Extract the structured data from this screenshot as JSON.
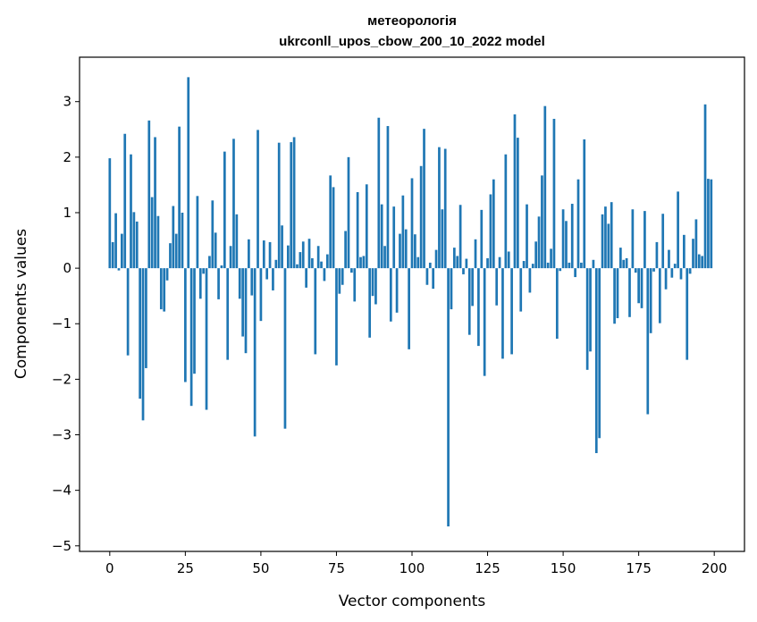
{
  "chart_data": {
    "type": "bar",
    "title": "метеорологія",
    "subtitle": "ukrconll_upos_cbow_200_10_2022 model",
    "xlabel": "Vector components",
    "ylabel": "Components values",
    "xlim": [
      -10,
      210
    ],
    "ylim": [
      -5.1,
      3.8
    ],
    "xticks": [
      0,
      25,
      50,
      75,
      100,
      125,
      150,
      175,
      200
    ],
    "xtick_labels": [
      "0",
      "25",
      "50",
      "75",
      "100",
      "125",
      "150",
      "175",
      "200"
    ],
    "yticks": [
      -5,
      -4,
      -3,
      -2,
      -1,
      0,
      1,
      2,
      3
    ],
    "ytick_labels": [
      "−5",
      "−4",
      "−3",
      "−2",
      "−1",
      "0",
      "1",
      "2",
      "3"
    ],
    "grid": false,
    "bar_color": "#1f77b4",
    "values": [
      1.98,
      0.47,
      0.99,
      -0.04,
      0.62,
      2.42,
      -1.57,
      2.05,
      1.01,
      0.84,
      -2.35,
      -2.74,
      -1.8,
      2.66,
      1.28,
      2.36,
      0.94,
      -0.74,
      -0.78,
      -0.22,
      0.45,
      1.12,
      0.62,
      2.55,
      1.0,
      -2.05,
      3.44,
      -2.48,
      -1.9,
      1.3,
      -0.55,
      -0.1,
      -2.55,
      0.22,
      1.22,
      0.64,
      -0.56,
      0.05,
      2.1,
      -1.65,
      0.4,
      2.33,
      0.97,
      -0.55,
      -1.23,
      -1.53,
      0.52,
      -0.49,
      -3.03,
      2.49,
      -0.95,
      0.5,
      -0.2,
      0.47,
      -0.4,
      0.15,
      2.26,
      0.77,
      -2.89,
      0.41,
      2.27,
      2.36,
      0.07,
      0.29,
      0.48,
      -0.35,
      0.53,
      0.18,
      -1.55,
      0.4,
      0.12,
      -0.23,
      0.25,
      1.67,
      1.46,
      -1.75,
      -0.46,
      -0.3,
      0.67,
      2.0,
      -0.08,
      -0.6,
      1.37,
      0.2,
      0.22,
      1.51,
      -1.25,
      -0.5,
      -0.65,
      2.71,
      1.15,
      0.4,
      2.56,
      -0.96,
      1.11,
      -0.8,
      0.62,
      1.31,
      0.7,
      -1.46,
      1.62,
      0.61,
      0.2,
      1.84,
      2.51,
      -0.3,
      0.1,
      -0.37,
      0.33,
      2.18,
      1.06,
      2.15,
      -4.65,
      -0.74,
      0.37,
      0.22,
      1.14,
      -0.11,
      0.17,
      -1.2,
      -0.68,
      0.52,
      -1.4,
      1.05,
      -1.94,
      0.18,
      1.33,
      1.6,
      -0.67,
      0.2,
      -1.63,
      2.05,
      0.3,
      -1.55,
      2.77,
      2.35,
      -0.78,
      0.13,
      1.15,
      -0.44,
      0.08,
      0.48,
      0.93,
      1.67,
      2.92,
      0.1,
      0.35,
      2.69,
      -1.27,
      -0.05,
      1.06,
      0.85,
      0.1,
      1.16,
      -0.16,
      1.6,
      0.1,
      2.32,
      -1.83,
      -1.5,
      0.15,
      -3.33,
      -3.06,
      0.97,
      1.11,
      0.8,
      1.19,
      -1.0,
      -0.9,
      0.37,
      0.15,
      0.18,
      -0.88,
      1.06,
      -0.08,
      -0.63,
      -0.72,
      1.03,
      -2.63,
      -1.17,
      -0.06,
      0.47,
      -0.99,
      0.98,
      -0.38,
      0.33,
      -0.17,
      0.08,
      1.38,
      -0.2,
      0.6,
      -1.65,
      -0.1,
      0.53,
      0.88,
      0.25,
      0.22,
      2.95,
      1.61,
      1.6
    ]
  }
}
